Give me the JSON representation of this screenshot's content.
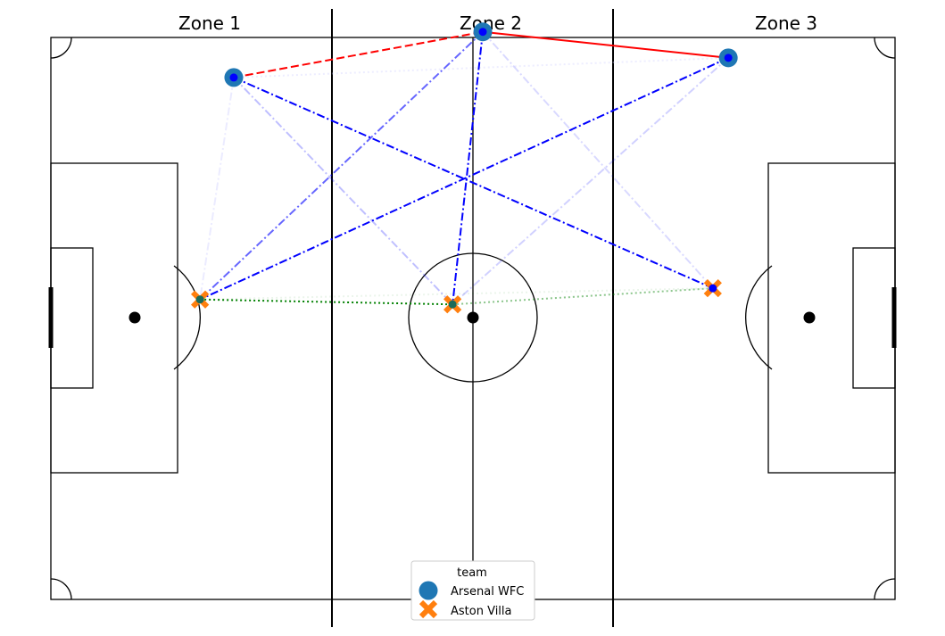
{
  "chart_data": {
    "type": "scatter",
    "title": "",
    "zones": [
      "Zone 1",
      "Zone 2",
      "Zone 3"
    ],
    "pitch": {
      "length": 120,
      "width": 80
    },
    "legend": {
      "title": "team",
      "placement": "bottom-center",
      "entries": [
        "Arsenal WFC",
        "Aston Villa"
      ]
    },
    "series": [
      {
        "name": "Arsenal WFC",
        "color": "#1f77b4",
        "marker": "circle",
        "points": [
          {
            "x": 26,
            "y": 34.3
          },
          {
            "x": 61.4,
            "y": 40.8
          },
          {
            "x": 96.3,
            "y": 37.1
          }
        ]
      },
      {
        "name": "Aston Villa",
        "color": "#ff7f0e",
        "marker": "x",
        "points": [
          {
            "x": 21.2,
            "y": 2.7
          },
          {
            "x": 57.1,
            "y": 2.0
          },
          {
            "x": 94.1,
            "y": 4.3
          }
        ]
      }
    ],
    "links": [
      {
        "from": [
          26,
          34.3
        ],
        "to": [
          61.4,
          40.8
        ],
        "color": "#ff0000",
        "style": "dashed",
        "opacity": 1.0
      },
      {
        "from": [
          61.4,
          40.8
        ],
        "to": [
          96.3,
          37.1
        ],
        "color": "#ff0000",
        "style": "solid",
        "opacity": 1.0
      },
      {
        "from": [
          26,
          34.3
        ],
        "to": [
          96.3,
          37.1
        ],
        "color": "#ccccff",
        "style": "dotted",
        "opacity": 0.35
      },
      {
        "from": [
          21.2,
          2.7
        ],
        "to": [
          57.1,
          2.0
        ],
        "color": "#008000",
        "style": "dotted",
        "opacity": 1.0
      },
      {
        "from": [
          57.1,
          2.0
        ],
        "to": [
          94.1,
          4.3
        ],
        "color": "#008000",
        "style": "dotted",
        "opacity": 0.45
      },
      {
        "from": [
          21.2,
          2.7
        ],
        "to": [
          94.1,
          4.3
        ],
        "color": "#008000",
        "style": "dotted",
        "opacity": 0.08
      },
      {
        "from": [
          26,
          34.3
        ],
        "to": [
          94.1,
          4.3
        ],
        "color": "#0000ff",
        "style": "dashdot",
        "opacity": 1.0
      },
      {
        "from": [
          61.4,
          40.8
        ],
        "to": [
          57.1,
          2.0
        ],
        "color": "#0000ff",
        "style": "dashdot",
        "opacity": 1.0
      },
      {
        "from": [
          96.3,
          37.1
        ],
        "to": [
          21.2,
          2.7
        ],
        "color": "#0000ff",
        "style": "dashdot",
        "opacity": 1.0
      },
      {
        "from": [
          61.4,
          40.8
        ],
        "to": [
          21.2,
          2.7
        ],
        "color": "#0000ff",
        "style": "dashdot",
        "opacity": 0.6
      },
      {
        "from": [
          26,
          34.3
        ],
        "to": [
          57.1,
          2.0
        ],
        "color": "#0000ff",
        "style": "dashdot",
        "opacity": 0.25
      },
      {
        "from": [
          96.3,
          37.1
        ],
        "to": [
          57.1,
          2.0
        ],
        "color": "#0000ff",
        "style": "dashdot",
        "opacity": 0.18
      },
      {
        "from": [
          61.4,
          40.8
        ],
        "to": [
          94.1,
          4.3
        ],
        "color": "#0000ff",
        "style": "dashdot",
        "opacity": 0.15
      },
      {
        "from": [
          26,
          34.3
        ],
        "to": [
          21.2,
          2.7
        ],
        "color": "#0000ff",
        "style": "dashdot",
        "opacity": 0.08
      }
    ]
  }
}
